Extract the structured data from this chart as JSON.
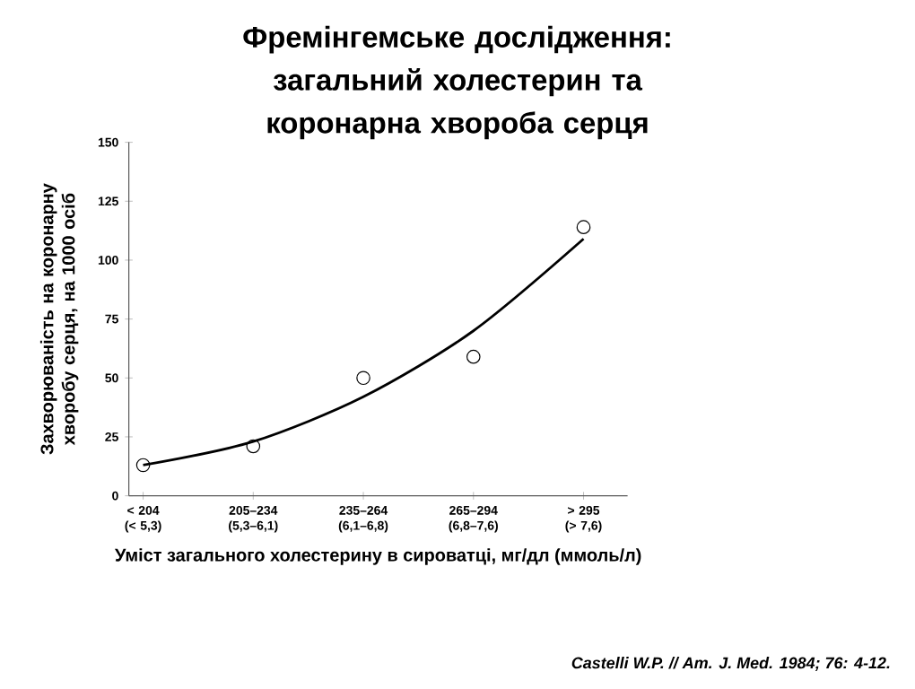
{
  "chart_data": {
    "type": "scatter",
    "title": "Фремінгемське дослідження: загальний холестерин та коронарна хвороба серця",
    "xlabel": "Уміст загального холестерину в сироватці, мг/дл (ммоль/л)",
    "ylabel": "Захворюваність на коронарну хворобу серця, на 1000 осіб",
    "categories": [
      "< 204 (< 5,3)",
      "205–234 (5,3–6,1)",
      "235–264 (6,1–6,8)",
      "265–294 (6,8–7,6)",
      "> 295 (> 7,6)"
    ],
    "series": [
      {
        "color": "#000000",
        "marker": "circle",
        "values": [
          13,
          21,
          50,
          59,
          114
        ]
      },
      {
        "type": "line",
        "color": "#000000",
        "marker": "none",
        "values": [
          13,
          23,
          42,
          70,
          109
        ]
      }
    ],
    "ylim": [
      0,
      150
    ],
    "yticks": [
      0,
      25,
      50,
      75,
      100,
      125,
      150
    ],
    "grid": false,
    "annotations": [
      "Castelli W.P. // Am. J. Med. 1984; 76: 4-12."
    ]
  }
}
